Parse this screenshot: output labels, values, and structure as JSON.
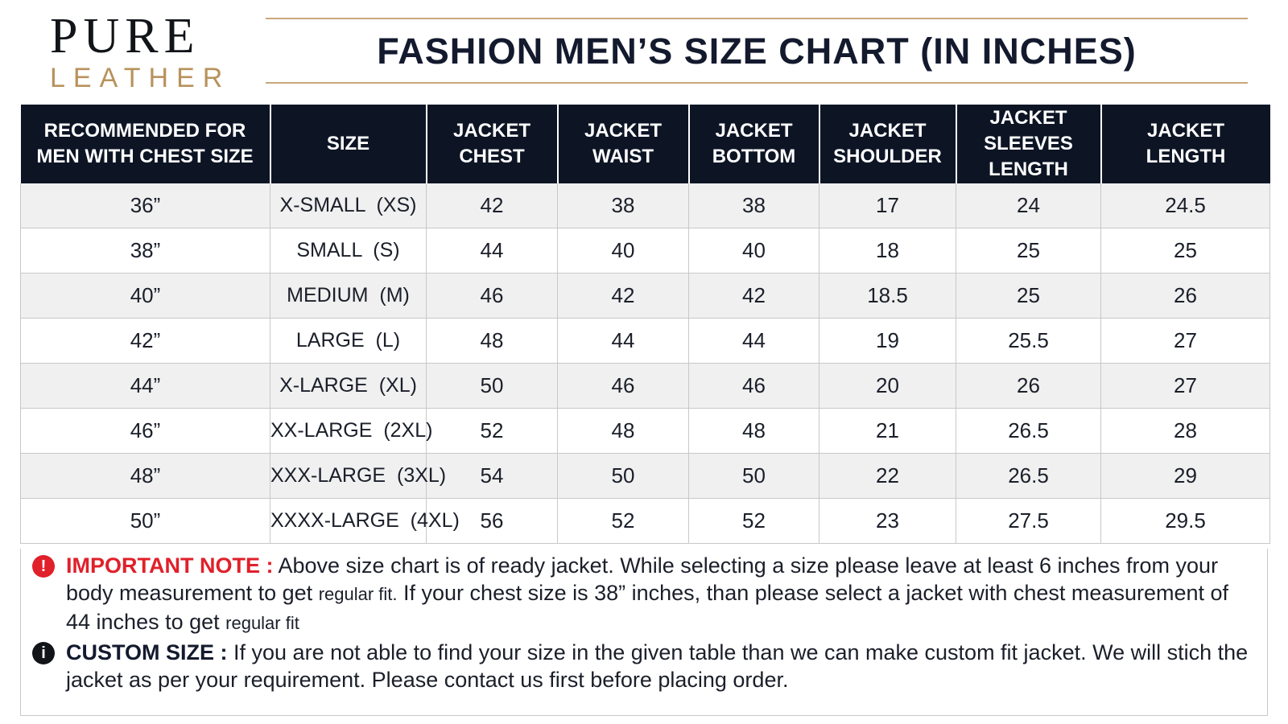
{
  "brand": {
    "line1": "PURE",
    "line2": "LEATHER"
  },
  "title": "FASHION MEN’S SIZE CHART (IN INCHES)",
  "table": {
    "headers": [
      [
        "RECOMMENDED FOR",
        "MEN WITH CHEST SIZE"
      ],
      [
        "SIZE"
      ],
      [
        "JACKET",
        "CHEST"
      ],
      [
        "JACKET",
        "WAIST"
      ],
      [
        "JACKET",
        "BOTTOM"
      ],
      [
        "JACKET",
        "SHOULDER"
      ],
      [
        "JACKET",
        "SLEEVES",
        "LENGTH"
      ],
      [
        "JACKET",
        "LENGTH"
      ]
    ],
    "rows": [
      [
        "36”",
        "X-SMALL  (XS)",
        "42",
        "38",
        "38",
        "17",
        "24",
        "24.5"
      ],
      [
        "38”",
        "SMALL  (S)",
        "44",
        "40",
        "40",
        "18",
        "25",
        "25"
      ],
      [
        "40”",
        "MEDIUM  (M)",
        "46",
        "42",
        "42",
        "18.5",
        "25",
        "26"
      ],
      [
        "42”",
        "LARGE  (L)",
        "48",
        "44",
        "44",
        "19",
        "25.5",
        "27"
      ],
      [
        "44”",
        "X-LARGE  (XL)",
        "50",
        "46",
        "46",
        "20",
        "26",
        "27"
      ],
      [
        "46”",
        "XX-LARGE  (2XL)",
        "52",
        "48",
        "48",
        "21",
        "26.5",
        "28"
      ],
      [
        "48”",
        "XXX-LARGE  (3XL)",
        "54",
        "50",
        "50",
        "22",
        "26.5",
        "29"
      ],
      [
        "50”",
        "XXXX-LARGE  (4XL)",
        "56",
        "52",
        "52",
        "23",
        "27.5",
        "29.5"
      ]
    ]
  },
  "notes": {
    "important": {
      "icon": "!",
      "label": "IMPORTANT NOTE :",
      "text_a": " Above size chart is of ready jacket. While selecting a size please leave at least 6 inches from your body measurement to get ",
      "small_a": "regular fit.",
      "text_b": " If your chest size is 38” inches, than please select a jacket with chest measurement of 44 inches to get ",
      "small_b": "regular fit"
    },
    "custom": {
      "icon": "i",
      "label": "CUSTOM SIZE :",
      "text": " If you are not able to find your size in the given table than we can make custom fit jacket. We will stich the jacket as per your requirement. Please contact us first before placing order."
    }
  }
}
